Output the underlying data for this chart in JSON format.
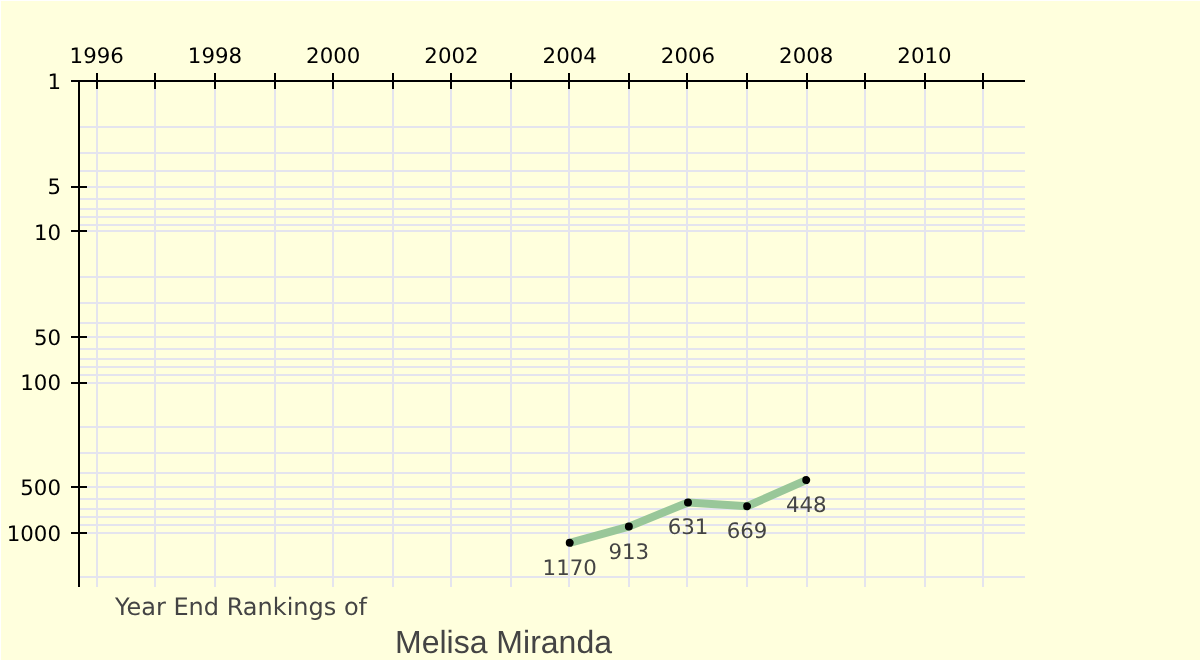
{
  "chart_data": {
    "type": "line",
    "title": "Year End Rankings of",
    "subtitle": "Melisa Miranda",
    "x": [
      2004,
      2005,
      2006,
      2007,
      2008
    ],
    "series": [
      {
        "color": "#99c799",
        "values": [
          1170,
          913,
          631,
          669,
          448
        ]
      }
    ],
    "xlim": [
      1995.7,
      2011.7
    ],
    "ylim": [
      2300,
      1
    ],
    "log": "y",
    "xticks": [
      1996,
      {
        "value": 1997,
        "label": null
      },
      1998,
      {
        "value": 1999,
        "label": null
      },
      2000,
      {
        "value": 2001,
        "label": null
      },
      2002,
      {
        "value": 2003,
        "label": null
      },
      2004,
      {
        "value": 2005,
        "label": null
      },
      2006,
      {
        "value": 2007,
        "label": null
      },
      2008,
      {
        "value": 2009,
        "label": null
      },
      2010,
      {
        "value": 2011,
        "label": null
      }
    ],
    "yticks": [
      1,
      5,
      10,
      50,
      100,
      500,
      1000
    ],
    "grid": true,
    "marker": "circle",
    "data_labels": true,
    "line_style": "solid"
  }
}
